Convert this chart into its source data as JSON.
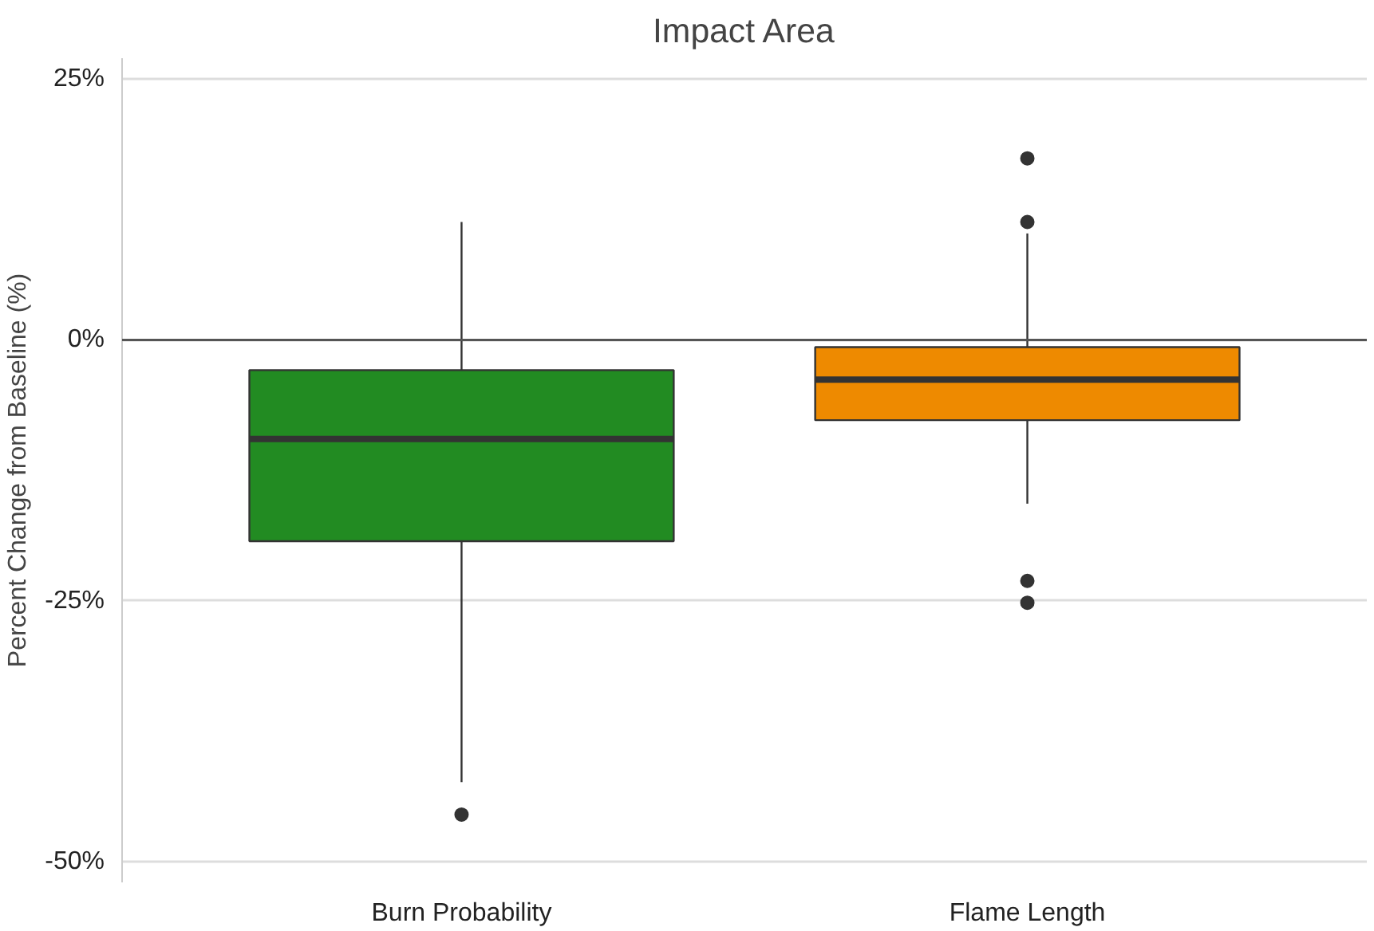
{
  "chart_data": {
    "type": "box",
    "title": "Impact Area",
    "ylabel": "Percent Change from Baseline (%)",
    "categories": [
      "Burn Probability",
      "Flame Length"
    ],
    "colors": [
      "#228b22",
      "#ee8a00"
    ],
    "boxes": [
      {
        "low": -42.4,
        "q1": -19.3,
        "median": -9.5,
        "q3": -2.9,
        "high": 11.3,
        "outliers": [
          -45.5
        ]
      },
      {
        "low": -15.7,
        "q1": -7.7,
        "median": -3.8,
        "q3": -0.7,
        "high": 10.2,
        "outliers": [
          17.4,
          11.3,
          -23.1,
          -25.2
        ]
      }
    ],
    "ylim": [
      -52,
      27
    ],
    "yticks": [
      {
        "value": 25,
        "label": "25%"
      },
      {
        "value": 0,
        "label": "0%"
      },
      {
        "value": -25,
        "label": "-25%"
      },
      {
        "value": -50,
        "label": "-50%"
      }
    ],
    "grid": "y",
    "ref_lines": [
      {
        "axis": "y",
        "value": 0,
        "color": "#555555"
      }
    ]
  }
}
